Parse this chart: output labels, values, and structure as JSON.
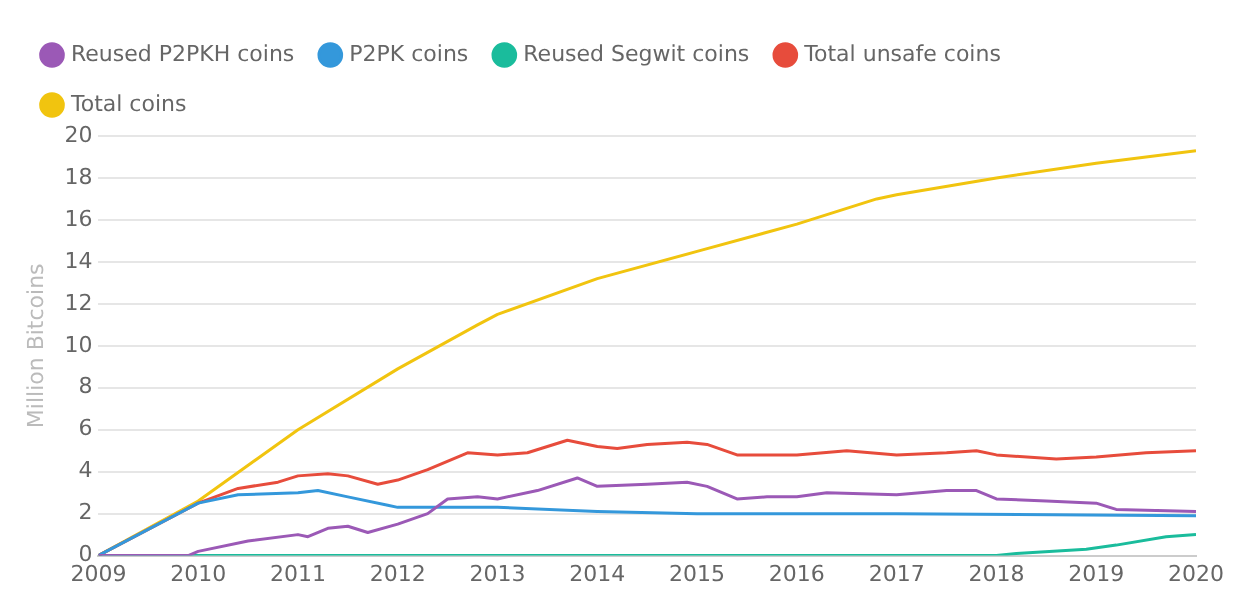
{
  "chart_data": {
    "type": "line",
    "ylabel": "Million Bitcoins",
    "xlim": [
      2009,
      2020
    ],
    "xticks": [
      2009,
      2010,
      2011,
      2012,
      2013,
      2014,
      2015,
      2016,
      2017,
      2018,
      2019,
      2020
    ],
    "ylim": [
      0,
      20
    ],
    "yticks": [
      0,
      2,
      4,
      6,
      8,
      10,
      12,
      14,
      16,
      18,
      20
    ],
    "grid": "y",
    "legend": "top",
    "marker": "none",
    "series": [
      {
        "name": "Reused P2PKH coins",
        "color": "#9b59b6",
        "x": [
          2009,
          2009.9,
          2010,
          2010.5,
          2011,
          2011.1,
          2011.3,
          2011.5,
          2011.7,
          2012,
          2012.3,
          2012.5,
          2012.8,
          2013,
          2013.4,
          2013.8,
          2014,
          2014.5,
          2014.9,
          2015.1,
          2015.4,
          2015.7,
          2016,
          2016.3,
          2017,
          2017.5,
          2017.8,
          2018,
          2018.5,
          2019,
          2019.2,
          2020
        ],
        "values": [
          0,
          0,
          0.2,
          0.7,
          1.0,
          0.9,
          1.3,
          1.4,
          1.1,
          1.5,
          2.0,
          2.7,
          2.8,
          2.7,
          3.1,
          3.7,
          3.3,
          3.4,
          3.5,
          3.3,
          2.7,
          2.8,
          2.8,
          3.0,
          2.9,
          3.1,
          3.1,
          2.7,
          2.6,
          2.5,
          2.2,
          2.1
        ]
      },
      {
        "name": "P2PK coins",
        "color": "#3498db",
        "x": [
          2009,
          2010,
          2010.4,
          2011,
          2011.2,
          2011.5,
          2011.9,
          2012,
          2013,
          2014,
          2015,
          2017,
          2020
        ],
        "values": [
          0,
          2.5,
          2.9,
          3.0,
          3.1,
          2.8,
          2.4,
          2.3,
          2.3,
          2.1,
          2.0,
          2.0,
          1.9
        ]
      },
      {
        "name": "Reused Segwit coins",
        "color": "#1abc9c",
        "x": [
          2009,
          2018,
          2018.2,
          2018.9,
          2019.2,
          2019.7,
          2020
        ],
        "values": [
          0,
          0,
          0.1,
          0.3,
          0.5,
          0.9,
          1.0
        ]
      },
      {
        "name": "Total unsafe coins",
        "color": "#e74c3c",
        "x": [
          2009,
          2010,
          2010.4,
          2010.8,
          2011,
          2011.3,
          2011.5,
          2011.8,
          2012,
          2012.3,
          2012.7,
          2013,
          2013.3,
          2013.7,
          2014,
          2014.2,
          2014.5,
          2014.9,
          2015.1,
          2015.4,
          2016,
          2016.5,
          2017,
          2017.5,
          2017.8,
          2018,
          2018.6,
          2019,
          2019.5,
          2020
        ],
        "values": [
          0,
          2.5,
          3.2,
          3.5,
          3.8,
          3.9,
          3.8,
          3.4,
          3.6,
          4.1,
          4.9,
          4.8,
          4.9,
          5.5,
          5.2,
          5.1,
          5.3,
          5.4,
          5.3,
          4.8,
          4.8,
          5.0,
          4.8,
          4.9,
          5.0,
          4.8,
          4.6,
          4.7,
          4.9,
          5.0
        ]
      },
      {
        "name": "Total coins",
        "color": "#f1c40f",
        "x": [
          2009,
          2010,
          2011,
          2012,
          2012.8,
          2013,
          2014,
          2015,
          2016,
          2016.8,
          2017,
          2018,
          2019,
          2020
        ],
        "values": [
          0,
          2.6,
          6.0,
          8.9,
          11,
          11.5,
          13.2,
          14.5,
          15.8,
          17,
          17.2,
          18,
          18.7,
          19.3
        ]
      }
    ]
  }
}
